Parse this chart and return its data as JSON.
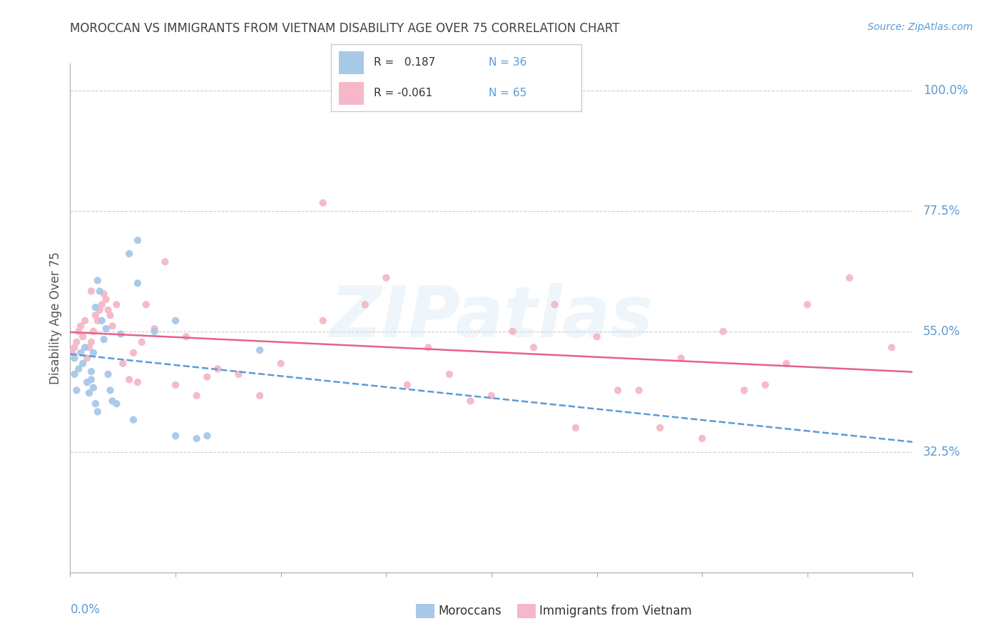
{
  "title": "MOROCCAN VS IMMIGRANTS FROM VIETNAM DISABILITY AGE OVER 75 CORRELATION CHART",
  "source": "Source: ZipAtlas.com",
  "ylabel": "Disability Age Over 75",
  "y_tick_values": [
    0.325,
    0.55,
    0.775,
    1.0
  ],
  "y_tick_labels": [
    "32.5%",
    "55.0%",
    "77.5%",
    "100.0%"
  ],
  "x_min": 0.0,
  "x_max": 0.4,
  "y_min": 0.1,
  "y_max": 1.05,
  "moroccan_color": "#a8c8e8",
  "vietnam_color": "#f5b8c8",
  "moroccan_trend_color": "#5b9bd5",
  "vietnam_trend_color": "#e8608a",
  "moroccan_x": [
    0.002,
    0.004,
    0.005,
    0.006,
    0.007,
    0.008,
    0.009,
    0.01,
    0.011,
    0.012,
    0.013,
    0.014,
    0.015,
    0.016,
    0.017,
    0.018,
    0.019,
    0.02,
    0.022,
    0.024,
    0.028,
    0.032,
    0.04,
    0.05,
    0.06,
    0.065,
    0.002,
    0.003,
    0.01,
    0.011,
    0.012,
    0.013,
    0.03,
    0.032,
    0.05,
    0.09
  ],
  "moroccan_y": [
    0.5,
    0.48,
    0.51,
    0.49,
    0.52,
    0.455,
    0.435,
    0.46,
    0.51,
    0.595,
    0.645,
    0.625,
    0.57,
    0.535,
    0.555,
    0.47,
    0.44,
    0.42,
    0.415,
    0.545,
    0.695,
    0.72,
    0.55,
    0.355,
    0.35,
    0.355,
    0.47,
    0.44,
    0.475,
    0.445,
    0.415,
    0.4,
    0.385,
    0.64,
    0.57,
    0.515
  ],
  "vietnam_x": [
    0.001,
    0.002,
    0.003,
    0.004,
    0.005,
    0.006,
    0.007,
    0.008,
    0.009,
    0.01,
    0.011,
    0.012,
    0.013,
    0.014,
    0.015,
    0.016,
    0.017,
    0.018,
    0.019,
    0.02,
    0.022,
    0.025,
    0.028,
    0.03,
    0.032,
    0.034,
    0.036,
    0.04,
    0.045,
    0.05,
    0.055,
    0.06,
    0.065,
    0.07,
    0.08,
    0.09,
    0.1,
    0.12,
    0.14,
    0.16,
    0.18,
    0.2,
    0.22,
    0.24,
    0.26,
    0.28,
    0.3,
    0.32,
    0.34,
    0.15,
    0.17,
    0.19,
    0.21,
    0.23,
    0.25,
    0.27,
    0.29,
    0.31,
    0.33,
    0.35,
    0.37,
    0.39,
    0.12,
    0.01
  ],
  "vietnam_y": [
    0.51,
    0.52,
    0.53,
    0.55,
    0.56,
    0.54,
    0.57,
    0.5,
    0.52,
    0.53,
    0.55,
    0.58,
    0.57,
    0.59,
    0.6,
    0.62,
    0.61,
    0.59,
    0.58,
    0.56,
    0.6,
    0.49,
    0.46,
    0.51,
    0.455,
    0.53,
    0.6,
    0.555,
    0.68,
    0.45,
    0.54,
    0.43,
    0.465,
    0.48,
    0.47,
    0.43,
    0.49,
    0.57,
    0.6,
    0.45,
    0.47,
    0.43,
    0.52,
    0.37,
    0.44,
    0.37,
    0.35,
    0.44,
    0.49,
    0.65,
    0.52,
    0.42,
    0.55,
    0.6,
    0.54,
    0.44,
    0.5,
    0.55,
    0.45,
    0.6,
    0.65,
    0.52,
    0.79,
    0.625
  ],
  "watermark": "ZIPatlas",
  "background_color": "#ffffff",
  "grid_color": "#cccccc",
  "axis_color": "#5b9bd5",
  "title_color": "#404040"
}
